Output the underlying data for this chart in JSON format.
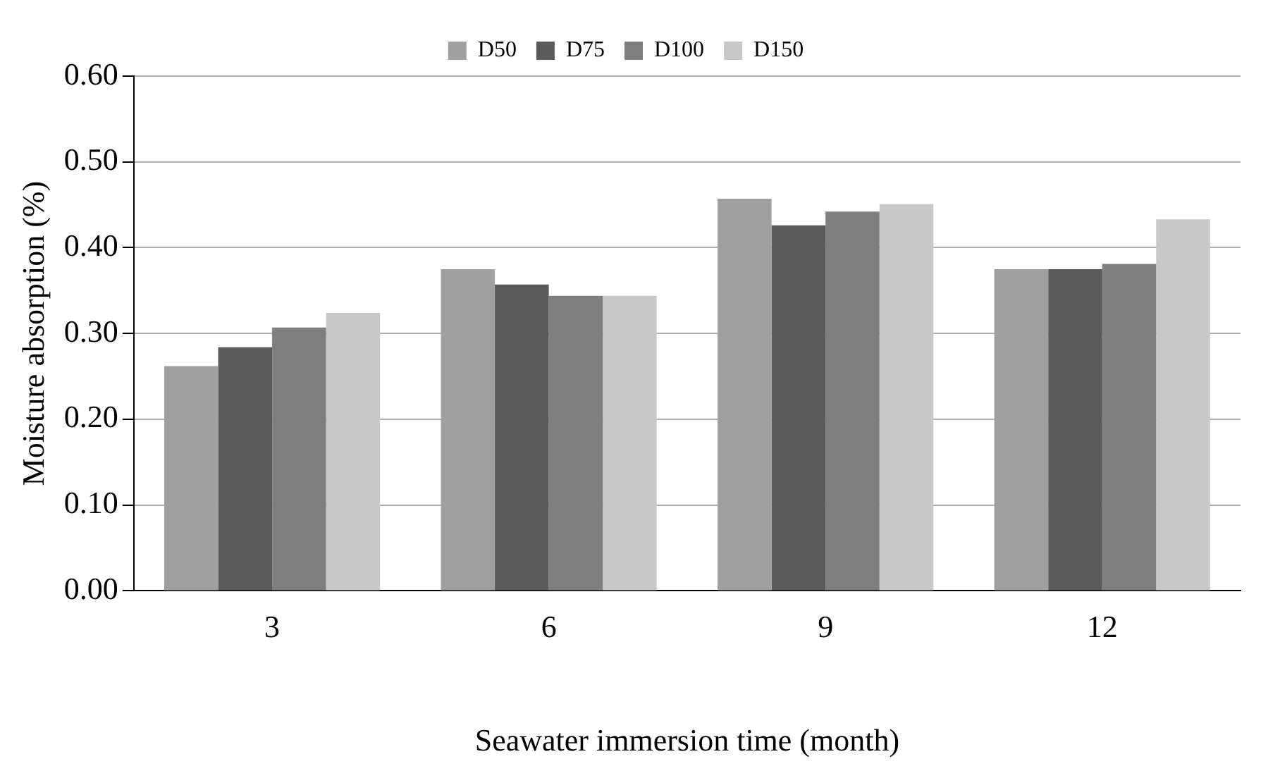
{
  "chart_data": {
    "type": "bar",
    "xlabel": "Seawater immersion time (month)",
    "ylabel": "Moisture absorption (%)",
    "categories": [
      "3",
      "6",
      "9",
      "12"
    ],
    "series": [
      {
        "name": "D50",
        "color": "#a0a0a0",
        "values": [
          0.262,
          0.375,
          0.457,
          0.375
        ]
      },
      {
        "name": "D75",
        "color": "#5a5a5a",
        "values": [
          0.284,
          0.357,
          0.426,
          0.375
        ]
      },
      {
        "name": "D100",
        "color": "#7f7f7f",
        "values": [
          0.307,
          0.344,
          0.442,
          0.381
        ]
      },
      {
        "name": "D150",
        "color": "#c8c8c8",
        "values": [
          0.324,
          0.344,
          0.451,
          0.433
        ]
      }
    ],
    "ylim": [
      0,
      0.6
    ],
    "yticks": [
      {
        "value": 0,
        "label": "0.00"
      },
      {
        "value": 0.1,
        "label": "0.10"
      },
      {
        "value": 0.2,
        "label": "0.20"
      },
      {
        "value": 0.3,
        "label": "0.30"
      },
      {
        "value": 0.4,
        "label": "0.40"
      },
      {
        "value": 0.5,
        "label": "0.50"
      },
      {
        "value": 0.6,
        "label": "0.60"
      }
    ],
    "grid": "y",
    "legend": "top"
  }
}
